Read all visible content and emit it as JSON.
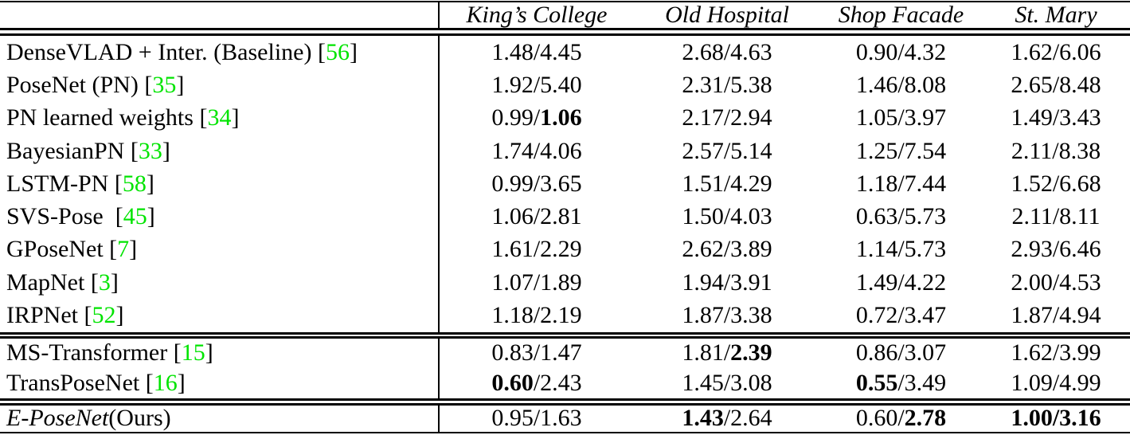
{
  "colors": {
    "citation_green": "#00E400",
    "text": "#000000",
    "background": "#FFFFFF",
    "rule": "#000000"
  },
  "table": {
    "columns": [
      "King’s College",
      "Old Hospital",
      "Shop Facade",
      "St. Mary"
    ],
    "groups": [
      {
        "rows": [
          {
            "method": "DenseVLAD + Inter. (Baseline)",
            "ref": "56",
            "cells": [
              {
                "pos": "1.48",
                "ori": "4.45",
                "pos_bold": false,
                "ori_bold": false
              },
              {
                "pos": "2.68",
                "ori": "4.63",
                "pos_bold": false,
                "ori_bold": false
              },
              {
                "pos": "0.90",
                "ori": "4.32",
                "pos_bold": false,
                "ori_bold": false
              },
              {
                "pos": "1.62",
                "ori": "6.06",
                "pos_bold": false,
                "ori_bold": false
              }
            ]
          },
          {
            "method": "PoseNet (PN)",
            "ref": "35",
            "cells": [
              {
                "pos": "1.92",
                "ori": "5.40",
                "pos_bold": false,
                "ori_bold": false
              },
              {
                "pos": "2.31",
                "ori": "5.38",
                "pos_bold": false,
                "ori_bold": false
              },
              {
                "pos": "1.46",
                "ori": "8.08",
                "pos_bold": false,
                "ori_bold": false
              },
              {
                "pos": "2.65",
                "ori": "8.48",
                "pos_bold": false,
                "ori_bold": false
              }
            ]
          },
          {
            "method": "PN learned weights",
            "ref": "34",
            "cells": [
              {
                "pos": "0.99",
                "ori": "1.06",
                "pos_bold": false,
                "ori_bold": true
              },
              {
                "pos": "2.17",
                "ori": "2.94",
                "pos_bold": false,
                "ori_bold": false
              },
              {
                "pos": "1.05",
                "ori": "3.97",
                "pos_bold": false,
                "ori_bold": false
              },
              {
                "pos": "1.49",
                "ori": "3.43",
                "pos_bold": false,
                "ori_bold": false
              }
            ]
          },
          {
            "method": "BayesianPN",
            "ref": "33",
            "cells": [
              {
                "pos": "1.74",
                "ori": "4.06",
                "pos_bold": false,
                "ori_bold": false
              },
              {
                "pos": "2.57",
                "ori": "5.14",
                "pos_bold": false,
                "ori_bold": false
              },
              {
                "pos": "1.25",
                "ori": "7.54",
                "pos_bold": false,
                "ori_bold": false
              },
              {
                "pos": "2.11",
                "ori": "8.38",
                "pos_bold": false,
                "ori_bold": false
              }
            ]
          },
          {
            "method": "LSTM-PN",
            "ref": "58",
            "cells": [
              {
                "pos": "0.99",
                "ori": "3.65",
                "pos_bold": false,
                "ori_bold": false
              },
              {
                "pos": "1.51",
                "ori": "4.29",
                "pos_bold": false,
                "ori_bold": false
              },
              {
                "pos": "1.18",
                "ori": "7.44",
                "pos_bold": false,
                "ori_bold": false
              },
              {
                "pos": "1.52",
                "ori": "6.68",
                "pos_bold": false,
                "ori_bold": false
              }
            ]
          },
          {
            "method": "SVS-Pose ",
            "ref": "45",
            "cells": [
              {
                "pos": "1.06",
                "ori": "2.81",
                "pos_bold": false,
                "ori_bold": false
              },
              {
                "pos": "1.50",
                "ori": "4.03",
                "pos_bold": false,
                "ori_bold": false
              },
              {
                "pos": "0.63",
                "ori": "5.73",
                "pos_bold": false,
                "ori_bold": false
              },
              {
                "pos": "2.11",
                "ori": "8.11",
                "pos_bold": false,
                "ori_bold": false
              }
            ]
          },
          {
            "method": "GPoseNet",
            "ref": "7",
            "cells": [
              {
                "pos": "1.61",
                "ori": "2.29",
                "pos_bold": false,
                "ori_bold": false
              },
              {
                "pos": "2.62",
                "ori": "3.89",
                "pos_bold": false,
                "ori_bold": false
              },
              {
                "pos": "1.14",
                "ori": "5.73",
                "pos_bold": false,
                "ori_bold": false
              },
              {
                "pos": "2.93",
                "ori": "6.46",
                "pos_bold": false,
                "ori_bold": false
              }
            ]
          },
          {
            "method": "MapNet",
            "ref": "3",
            "cells": [
              {
                "pos": "1.07",
                "ori": "1.89",
                "pos_bold": false,
                "ori_bold": false
              },
              {
                "pos": "1.94",
                "ori": "3.91",
                "pos_bold": false,
                "ori_bold": false
              },
              {
                "pos": "1.49",
                "ori": "4.22",
                "pos_bold": false,
                "ori_bold": false
              },
              {
                "pos": "2.00",
                "ori": "4.53",
                "pos_bold": false,
                "ori_bold": false
              }
            ]
          },
          {
            "method": "IRPNet",
            "ref": "52",
            "cells": [
              {
                "pos": "1.18",
                "ori": "2.19",
                "pos_bold": false,
                "ori_bold": false
              },
              {
                "pos": "1.87",
                "ori": "3.38",
                "pos_bold": false,
                "ori_bold": false
              },
              {
                "pos": "0.72",
                "ori": "3.47",
                "pos_bold": false,
                "ori_bold": false
              },
              {
                "pos": "1.87",
                "ori": "4.94",
                "pos_bold": false,
                "ori_bold": false
              }
            ]
          }
        ]
      },
      {
        "rows": [
          {
            "method": "MS-Transformer",
            "ref": "15",
            "cells": [
              {
                "pos": "0.83",
                "ori": "1.47",
                "pos_bold": false,
                "ori_bold": false
              },
              {
                "pos": "1.81",
                "ori": "2.39",
                "pos_bold": false,
                "ori_bold": true
              },
              {
                "pos": "0.86",
                "ori": "3.07",
                "pos_bold": false,
                "ori_bold": false
              },
              {
                "pos": "1.62",
                "ori": "3.99",
                "pos_bold": false,
                "ori_bold": false
              }
            ]
          },
          {
            "method": "TransPoseNet",
            "ref": "16",
            "cells": [
              {
                "pos": "0.60",
                "ori": "2.43",
                "pos_bold": true,
                "ori_bold": false
              },
              {
                "pos": "1.45",
                "ori": "3.08",
                "pos_bold": false,
                "ori_bold": false
              },
              {
                "pos": "0.55",
                "ori": "3.49",
                "pos_bold": true,
                "ori_bold": false
              },
              {
                "pos": "1.09",
                "ori": "4.99",
                "pos_bold": false,
                "ori_bold": false
              }
            ]
          }
        ]
      },
      {
        "rows": [
          {
            "method_italic": "E-PoseNet",
            "method": " (Ours)",
            "ref": null,
            "cells": [
              {
                "pos": "0.95",
                "ori": "1.63",
                "pos_bold": false,
                "ori_bold": false
              },
              {
                "pos": "1.43",
                "ori": "2.64",
                "pos_bold": true,
                "ori_bold": false
              },
              {
                "pos": "0.60",
                "ori": "2.78",
                "pos_bold": false,
                "ori_bold": true
              },
              {
                "pos": "1.00",
                "ori": "3.16",
                "pos_bold": true,
                "ori_bold": true
              }
            ]
          }
        ]
      }
    ]
  }
}
